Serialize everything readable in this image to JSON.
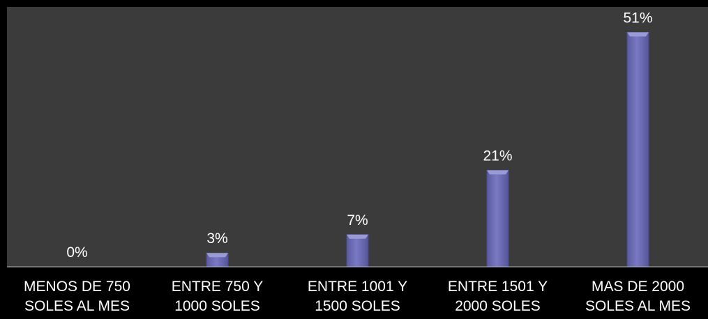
{
  "chart_data": {
    "type": "bar",
    "categories": [
      "MENOS DE 750\nSOLES AL MES",
      "ENTRE 750 Y\n1000 SOLES",
      "ENTRE 1001 Y\n1500 SOLES",
      "ENTRE 1501 Y\n2000 SOLES",
      "MAS DE 2000\nSOLES AL MES"
    ],
    "values": [
      0,
      3,
      7,
      21,
      51
    ],
    "data_labels": [
      "0%",
      "3%",
      "7%",
      "21%",
      "51%"
    ],
    "ylim": [
      0,
      55
    ],
    "grid": false,
    "legend": "none"
  },
  "colors": {
    "plot_background": "#3b3b3b",
    "page_background": "#000000",
    "bar_fill": "#6b6bb3",
    "bar_edge": "#4a4a8c",
    "bar_highlight": "#9a9ad6",
    "text": "#ffffff",
    "axis": "#b0b0b0"
  }
}
